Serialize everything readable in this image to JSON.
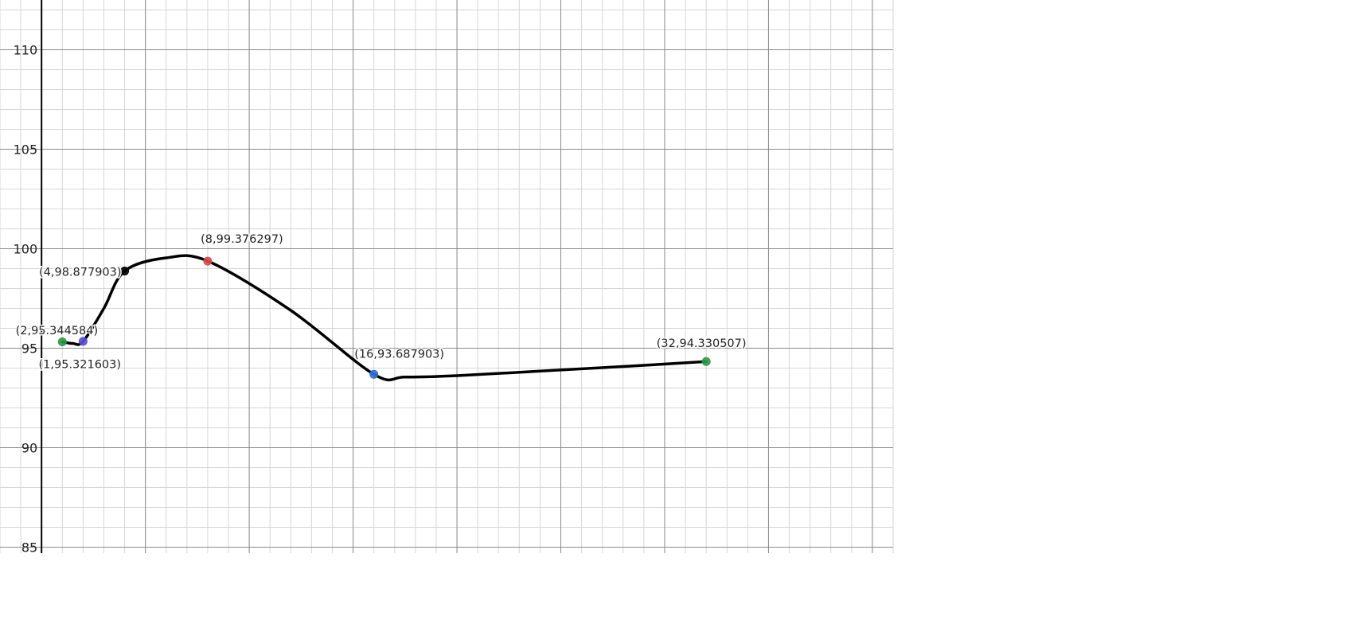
{
  "chart_data": {
    "type": "line",
    "xlim": [
      -2,
      41
    ],
    "ylim": [
      84.7,
      112.5
    ],
    "x_grid_major_step": 5,
    "y_grid_major_step": 5,
    "grid_minor_subdivisions": 5,
    "grid": true,
    "y_ticks": [
      {
        "value": 85,
        "label": "85"
      },
      {
        "value": 90,
        "label": "90"
      },
      {
        "value": 95,
        "label": "95"
      },
      {
        "value": 100,
        "label": "100"
      },
      {
        "value": 105,
        "label": "105"
      },
      {
        "value": 110,
        "label": "110"
      }
    ],
    "colors": {
      "curve": "#000000",
      "grid_major": "#8a8a8a",
      "grid_minor": "#d6d6d6",
      "axis": "#000000"
    },
    "points": [
      {
        "x": 1,
        "y": 95.321603,
        "label": "(1,95.321603)",
        "color": "#2d9a46"
      },
      {
        "x": 2,
        "y": 95.344584,
        "label": "(2,95.344584)",
        "color": "#5b4fd1"
      },
      {
        "x": 4,
        "y": 98.877903,
        "label": "(4,98.877903)",
        "color": "#000000"
      },
      {
        "x": 8,
        "y": 99.376297,
        "label": "(8,99.376297)",
        "color": "#d64b4b"
      },
      {
        "x": 16,
        "y": 93.687903,
        "label": "(16,93.687903)",
        "color": "#2f6fd1"
      },
      {
        "x": 32,
        "y": 94.330507,
        "label": "(32,94.330507)",
        "color": "#2d9a46"
      }
    ],
    "curve": {
      "x": [
        1,
        1.5,
        2,
        3,
        4,
        6,
        8,
        12,
        16,
        17.5,
        20,
        24,
        28,
        32
      ],
      "y": [
        95.32,
        95.24,
        95.34,
        97.0,
        98.88,
        99.54,
        99.38,
        96.9,
        93.69,
        93.55,
        93.62,
        93.85,
        94.08,
        94.33
      ]
    }
  }
}
